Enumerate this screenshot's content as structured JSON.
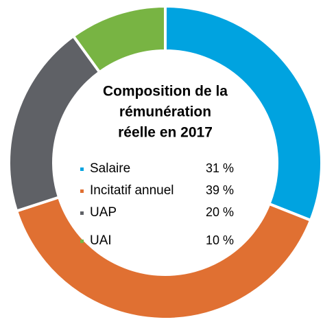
{
  "chart_data": {
    "type": "donut",
    "title": [
      "Composition de la",
      "rémunération",
      "réelle en 2017"
    ],
    "categories": [
      "Salaire",
      "Incitatif annuel",
      "UAP",
      "UAI"
    ],
    "values": [
      31,
      39,
      20,
      10
    ],
    "value_labels": [
      "31 %",
      "39 %",
      "20 %",
      "10 %"
    ],
    "colors": [
      "#00a3e0",
      "#e07032",
      "#5f6166",
      "#78b443"
    ]
  }
}
